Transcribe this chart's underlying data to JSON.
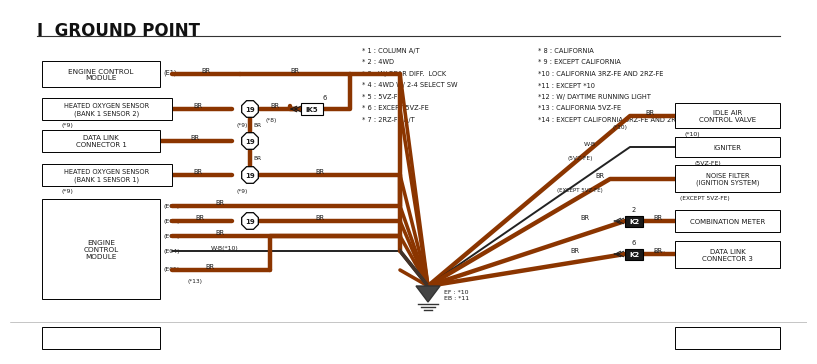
{
  "title": "I  GROUND POINT",
  "bg_color": "#ffffff",
  "wire_color": "#8B3500",
  "text_color": "#1a1a1a",
  "box_color": "#ffffff",
  "box_edge": "#000000",
  "notes_left": [
    "* 1 : COLUMN A/T",
    "* 2 : 4WD",
    "* 3 : W/ REAR DIFF.  LOCK",
    "* 4 : 4WD W/ 2-4 SELECT SW",
    "* 5 : 5VZ-FE",
    "* 6 : EXCEPT 5VZ-FE",
    "* 7 : 2RZ-FE A/T"
  ],
  "notes_right": [
    "* 8 : CALIFORNIA",
    "* 9 : EXCEPT CALIFORNIA",
    "*10 : CALIFORNIA 3RZ-FE AND 2RZ-FE",
    "*11 : EXCEPT *10",
    "*12 : W/ DAYTIME RUNNING LIGHT",
    "*13 : CALIFORNIA 5VZ-FE",
    "*14 : EXCEPT CALIFORNIA 3RZ-FE AND 2RZ-FE"
  ]
}
